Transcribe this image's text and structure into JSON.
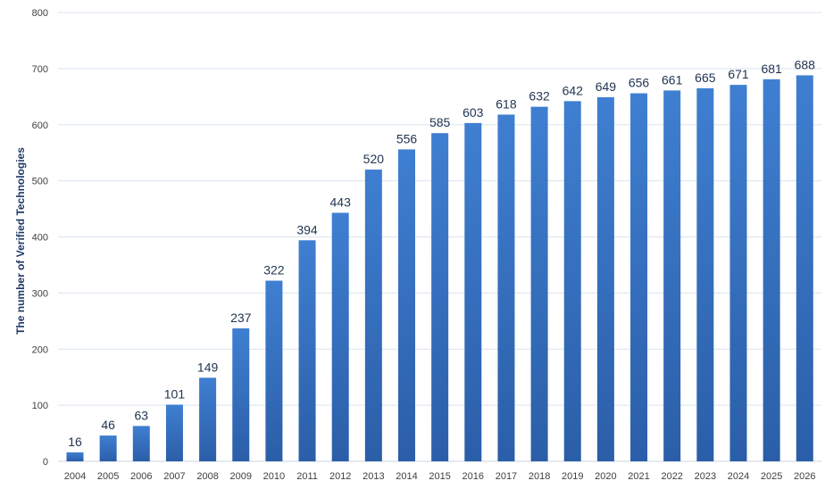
{
  "chart_data": {
    "type": "bar",
    "title": "",
    "xlabel": "",
    "ylabel": "The number of Verified Technologies",
    "categories": [
      "2004",
      "2005",
      "2006",
      "2007",
      "2008",
      "2009",
      "2010",
      "2011",
      "2012",
      "2013",
      "2014",
      "2015",
      "2016",
      "2017",
      "2018",
      "2019",
      "2020",
      "2021",
      "2022",
      "2023",
      "2024",
      "2025",
      "2026"
    ],
    "series": [
      {
        "values": [
          16,
          46,
          63,
          101,
          149,
          237,
          322,
          394,
          443,
          520,
          556,
          585,
          603,
          618,
          632,
          642,
          649,
          656,
          661,
          665,
          671,
          681,
          688
        ]
      }
    ],
    "ylim": [
      0,
      800
    ],
    "yticks": [
      0,
      100,
      200,
      300,
      400,
      500,
      600,
      700,
      800
    ],
    "grid": true,
    "legend": "none",
    "data_labels": true,
    "colors": {
      "bar_top": "#3f7fd1",
      "bar_bottom": "#2b5ea8",
      "grid": "#d9e3ef"
    }
  }
}
